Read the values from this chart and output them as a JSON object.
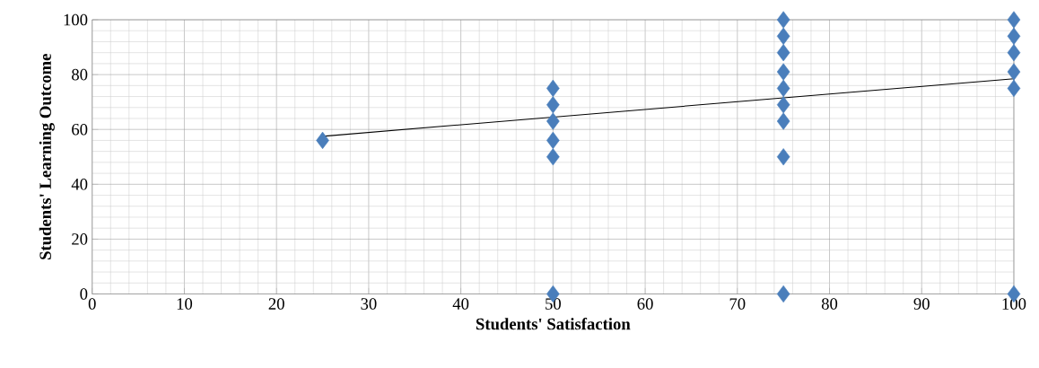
{
  "chart_data": {
    "type": "scatter",
    "xlabel": "Students' Satisfaction",
    "ylabel": "Students' Learning Outcome",
    "xlim": [
      0,
      100
    ],
    "ylim": [
      0,
      100
    ],
    "xticks": [
      0,
      10,
      20,
      30,
      40,
      50,
      60,
      70,
      80,
      90,
      100
    ],
    "yticks": [
      0,
      20,
      40,
      60,
      80,
      100
    ],
    "grid": true,
    "series": [
      {
        "marker": "diamond",
        "color": "#4a7ebb",
        "x": [
          25,
          50,
          50,
          50,
          50,
          50,
          50,
          75,
          75,
          75,
          75,
          75,
          75,
          75,
          75,
          75,
          100,
          100,
          100,
          100,
          100,
          100
        ],
        "values": [
          56,
          75,
          69,
          63,
          56,
          50,
          0,
          100,
          94,
          88,
          81,
          75,
          69,
          63,
          50,
          0,
          100,
          94,
          88,
          81,
          75,
          0
        ]
      },
      {
        "type": "line",
        "marker": "none",
        "color": "#000000",
        "x": [
          25,
          100
        ],
        "values": [
          57.5,
          78.5
        ]
      }
    ]
  }
}
